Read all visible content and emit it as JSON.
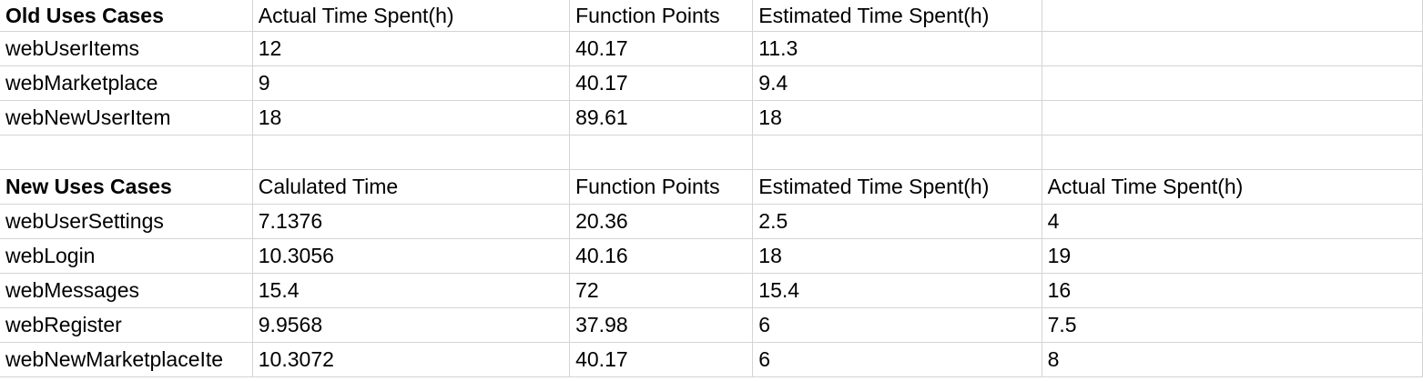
{
  "old_section": {
    "headers": [
      "Old Uses Cases",
      "Actual Time Spent(h)",
      "Function Points",
      "Estimated Time Spent(h)",
      ""
    ],
    "rows": [
      [
        "webUserItems",
        "12",
        "40.17",
        "11.3",
        ""
      ],
      [
        "webMarketplace",
        "9",
        "40.17",
        "9.4",
        ""
      ],
      [
        "webNewUserItem",
        "18",
        "89.61",
        "18",
        ""
      ]
    ]
  },
  "new_section": {
    "headers": [
      "New Uses Cases",
      "Calulated Time",
      "Function Points",
      "Estimated Time Spent(h)",
      "Actual Time Spent(h)"
    ],
    "rows": [
      [
        "webUserSettings",
        "7.1376",
        "20.36",
        "2.5",
        "4"
      ],
      [
        "webLogin",
        "10.3056",
        "40.16",
        "18",
        "19"
      ],
      [
        "webMessages",
        "15.4",
        "72",
        "15.4",
        "16"
      ],
      [
        "webRegister",
        "9.9568",
        "37.98",
        "6",
        "7.5"
      ],
      [
        "webNewMarketplaceIte",
        "10.3072",
        "40.17",
        "6",
        "8"
      ]
    ]
  }
}
